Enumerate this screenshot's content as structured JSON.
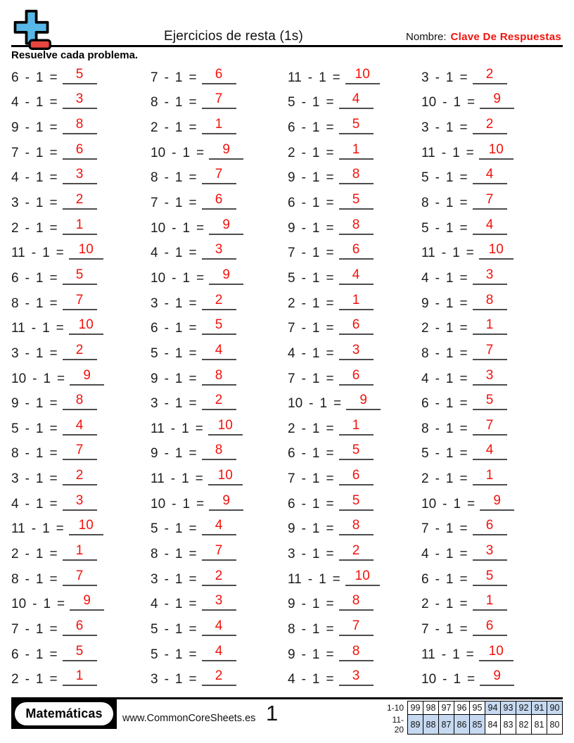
{
  "header": {
    "title": "Ejercicios de resta (1s)",
    "name_label": "Nombre:",
    "name_value": "Clave De Respuestas",
    "logo_icon": "plus-minus-icon",
    "colors": {
      "logo_plus": "#58b7e6",
      "logo_minus": "#e8453f",
      "answer_red": "#f2120c",
      "name_red": "#f2120c"
    }
  },
  "instructions": "Resuelve cada problema.",
  "worksheet": {
    "minus_sign": "-",
    "equals_sign": "=",
    "subtrahend": "1",
    "columns": [
      {
        "problems": [
          {
            "m": "6",
            "a": "5"
          },
          {
            "m": "4",
            "a": "3"
          },
          {
            "m": "9",
            "a": "8"
          },
          {
            "m": "7",
            "a": "6"
          },
          {
            "m": "4",
            "a": "3"
          },
          {
            "m": "3",
            "a": "2"
          },
          {
            "m": "2",
            "a": "1"
          },
          {
            "m": "11",
            "a": "10"
          },
          {
            "m": "6",
            "a": "5"
          },
          {
            "m": "8",
            "a": "7"
          },
          {
            "m": "11",
            "a": "10"
          },
          {
            "m": "3",
            "a": "2"
          },
          {
            "m": "10",
            "a": "9"
          },
          {
            "m": "9",
            "a": "8"
          },
          {
            "m": "5",
            "a": "4"
          },
          {
            "m": "8",
            "a": "7"
          },
          {
            "m": "3",
            "a": "2"
          },
          {
            "m": "4",
            "a": "3"
          },
          {
            "m": "11",
            "a": "10"
          },
          {
            "m": "2",
            "a": "1"
          },
          {
            "m": "8",
            "a": "7"
          },
          {
            "m": "10",
            "a": "9"
          },
          {
            "m": "7",
            "a": "6"
          },
          {
            "m": "6",
            "a": "5"
          },
          {
            "m": "2",
            "a": "1"
          }
        ]
      },
      {
        "problems": [
          {
            "m": "7",
            "a": "6"
          },
          {
            "m": "8",
            "a": "7"
          },
          {
            "m": "2",
            "a": "1"
          },
          {
            "m": "10",
            "a": "9"
          },
          {
            "m": "8",
            "a": "7"
          },
          {
            "m": "7",
            "a": "6"
          },
          {
            "m": "10",
            "a": "9"
          },
          {
            "m": "4",
            "a": "3"
          },
          {
            "m": "10",
            "a": "9"
          },
          {
            "m": "3",
            "a": "2"
          },
          {
            "m": "6",
            "a": "5"
          },
          {
            "m": "5",
            "a": "4"
          },
          {
            "m": "9",
            "a": "8"
          },
          {
            "m": "3",
            "a": "2"
          },
          {
            "m": "11",
            "a": "10"
          },
          {
            "m": "9",
            "a": "8"
          },
          {
            "m": "11",
            "a": "10"
          },
          {
            "m": "10",
            "a": "9"
          },
          {
            "m": "5",
            "a": "4"
          },
          {
            "m": "8",
            "a": "7"
          },
          {
            "m": "3",
            "a": "2"
          },
          {
            "m": "4",
            "a": "3"
          },
          {
            "m": "5",
            "a": "4"
          },
          {
            "m": "5",
            "a": "4"
          },
          {
            "m": "3",
            "a": "2"
          }
        ]
      },
      {
        "problems": [
          {
            "m": "11",
            "a": "10"
          },
          {
            "m": "5",
            "a": "4"
          },
          {
            "m": "6",
            "a": "5"
          },
          {
            "m": "2",
            "a": "1"
          },
          {
            "m": "9",
            "a": "8"
          },
          {
            "m": "6",
            "a": "5"
          },
          {
            "m": "9",
            "a": "8"
          },
          {
            "m": "7",
            "a": "6"
          },
          {
            "m": "5",
            "a": "4"
          },
          {
            "m": "2",
            "a": "1"
          },
          {
            "m": "7",
            "a": "6"
          },
          {
            "m": "4",
            "a": "3"
          },
          {
            "m": "7",
            "a": "6"
          },
          {
            "m": "10",
            "a": "9"
          },
          {
            "m": "2",
            "a": "1"
          },
          {
            "m": "6",
            "a": "5"
          },
          {
            "m": "7",
            "a": "6"
          },
          {
            "m": "6",
            "a": "5"
          },
          {
            "m": "9",
            "a": "8"
          },
          {
            "m": "3",
            "a": "2"
          },
          {
            "m": "11",
            "a": "10"
          },
          {
            "m": "9",
            "a": "8"
          },
          {
            "m": "8",
            "a": "7"
          },
          {
            "m": "9",
            "a": "8"
          },
          {
            "m": "4",
            "a": "3"
          }
        ]
      },
      {
        "problems": [
          {
            "m": "3",
            "a": "2"
          },
          {
            "m": "10",
            "a": "9"
          },
          {
            "m": "3",
            "a": "2"
          },
          {
            "m": "11",
            "a": "10"
          },
          {
            "m": "5",
            "a": "4"
          },
          {
            "m": "8",
            "a": "7"
          },
          {
            "m": "5",
            "a": "4"
          },
          {
            "m": "11",
            "a": "10"
          },
          {
            "m": "4",
            "a": "3"
          },
          {
            "m": "9",
            "a": "8"
          },
          {
            "m": "2",
            "a": "1"
          },
          {
            "m": "8",
            "a": "7"
          },
          {
            "m": "4",
            "a": "3"
          },
          {
            "m": "6",
            "a": "5"
          },
          {
            "m": "8",
            "a": "7"
          },
          {
            "m": "5",
            "a": "4"
          },
          {
            "m": "2",
            "a": "1"
          },
          {
            "m": "10",
            "a": "9"
          },
          {
            "m": "7",
            "a": "6"
          },
          {
            "m": "4",
            "a": "3"
          },
          {
            "m": "6",
            "a": "5"
          },
          {
            "m": "2",
            "a": "1"
          },
          {
            "m": "7",
            "a": "6"
          },
          {
            "m": "11",
            "a": "10"
          },
          {
            "m": "10",
            "a": "9"
          }
        ]
      }
    ]
  },
  "footer": {
    "brand": "Matemáticas",
    "website": "www.CommonCoreSheets.es",
    "page_number": "1",
    "score_table": {
      "highlight_color": "#c6d9f1",
      "rows": [
        {
          "label": "1-10",
          "values": [
            "99",
            "98",
            "97",
            "96",
            "95",
            "94",
            "93",
            "92",
            "91",
            "90"
          ],
          "highlight": [
            0,
            0,
            0,
            0,
            0,
            1,
            1,
            1,
            1,
            1
          ]
        },
        {
          "label": "11-20",
          "values": [
            "89",
            "88",
            "87",
            "86",
            "85",
            "84",
            "83",
            "82",
            "81",
            "80"
          ],
          "highlight": [
            1,
            1,
            1,
            1,
            1,
            0,
            0,
            0,
            0,
            0
          ]
        }
      ]
    }
  }
}
